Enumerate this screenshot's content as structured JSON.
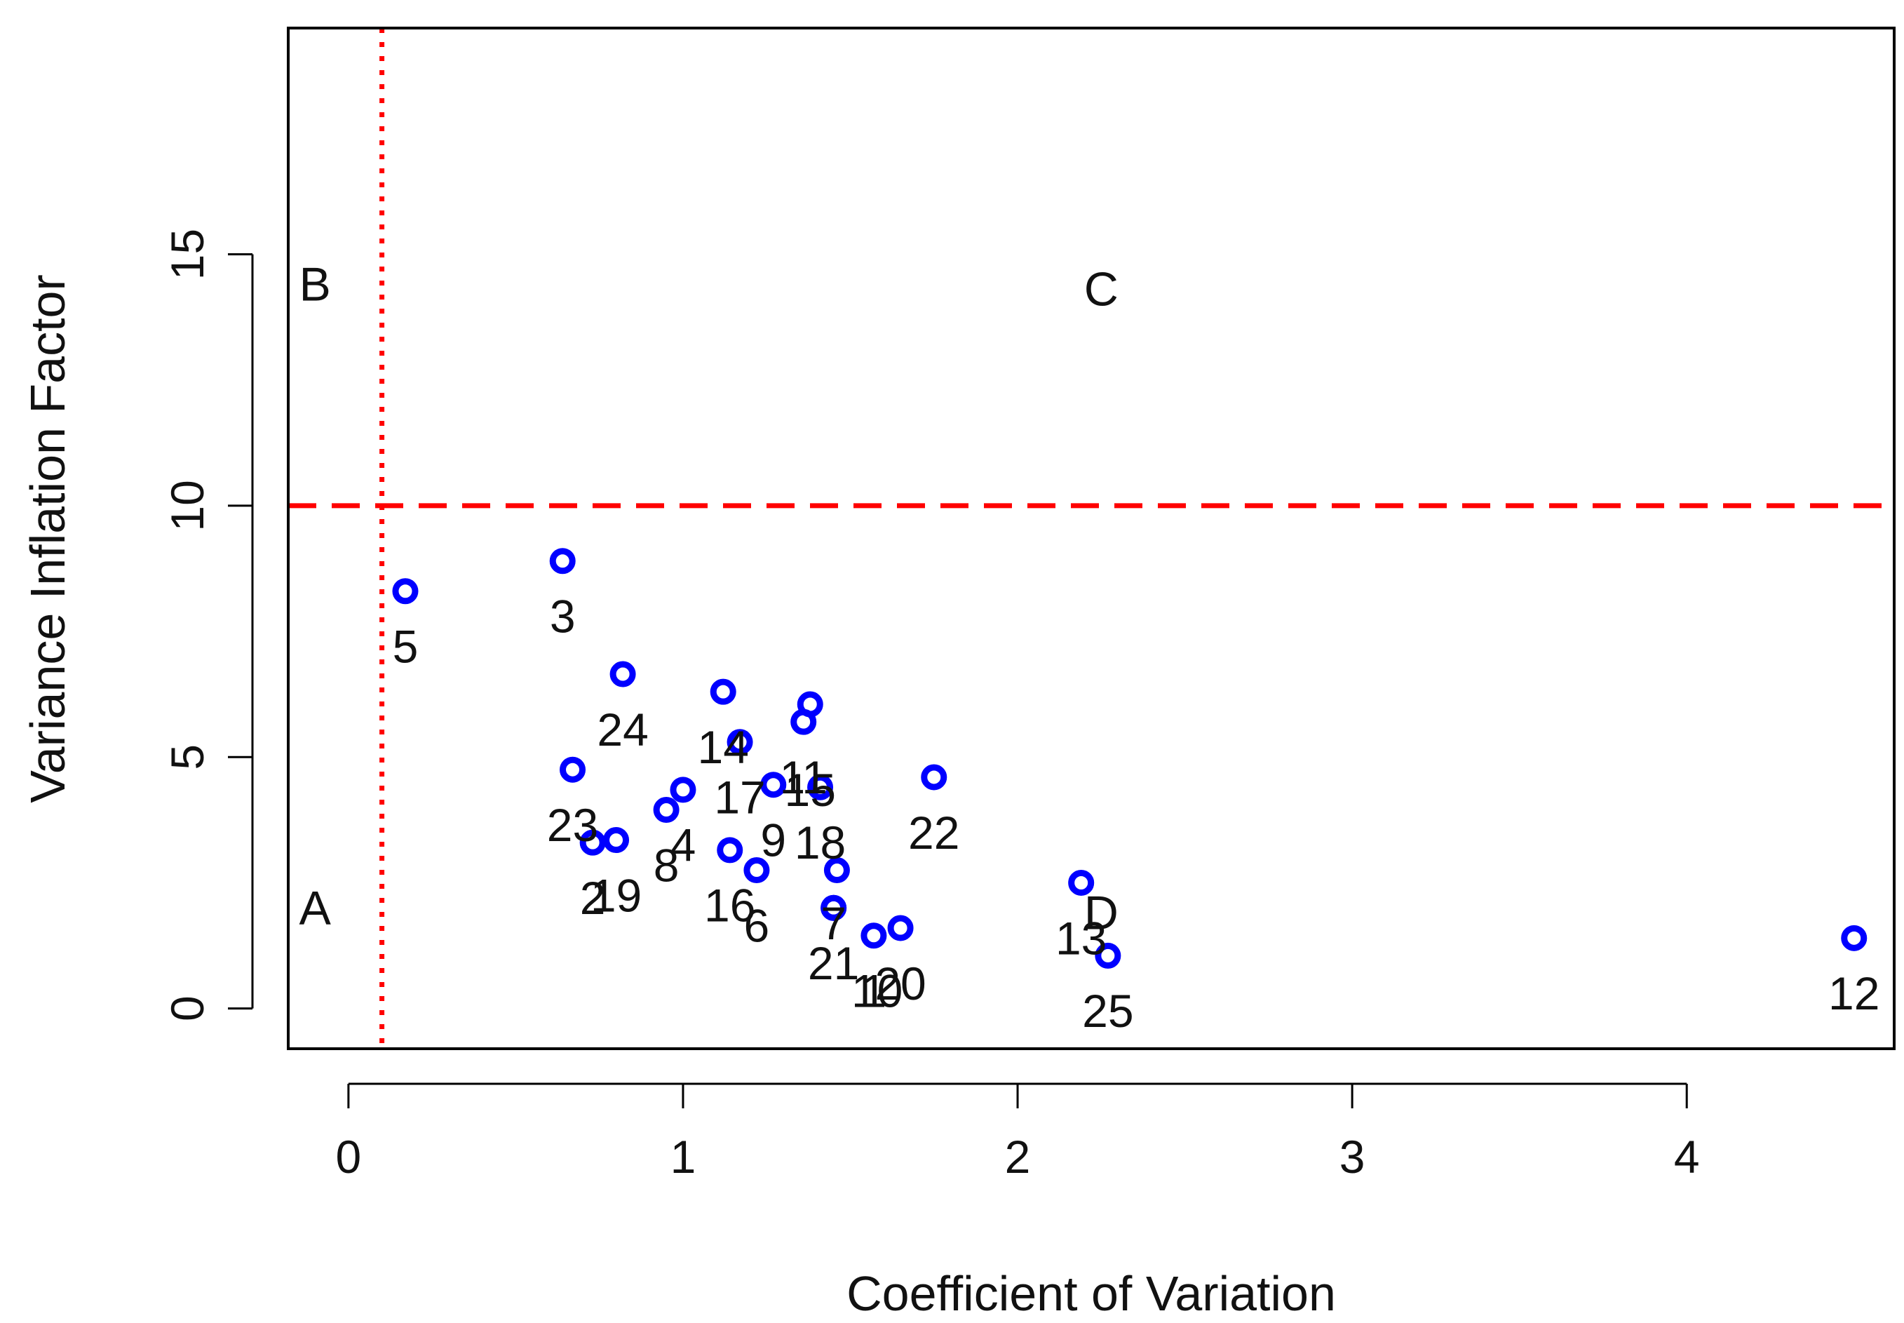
{
  "chart_data": {
    "type": "scatter",
    "title": "",
    "xlabel": "Coefficient of Variation",
    "ylabel": "Variance Inflation Factor",
    "xlim": [
      -0.18,
      4.62
    ],
    "ylim": [
      -0.8,
      19.5
    ],
    "xticks": [
      0,
      1,
      2,
      3,
      4
    ],
    "yticks": [
      0,
      5,
      10,
      15
    ],
    "grid": false,
    "marker_color": "#0000ff",
    "reference_color": "#ff0000",
    "reference_lines": [
      {
        "orientation": "vertical",
        "value": 0.1,
        "style": "dotted"
      },
      {
        "orientation": "horizontal",
        "value": 10,
        "style": "dashed"
      }
    ],
    "region_labels": [
      {
        "text": "A",
        "x": -0.1,
        "y": 2.0
      },
      {
        "text": "B",
        "x": -0.1,
        "y": 14.4
      },
      {
        "text": "C",
        "x": 2.25,
        "y": 14.3
      },
      {
        "text": "D",
        "x": 2.25,
        "y": 1.9
      }
    ],
    "points": [
      {
        "label": "1",
        "x": 1.57,
        "y": 1.45,
        "lx": 1.57,
        "ly": 0.35
      },
      {
        "label": "2",
        "x": 0.73,
        "y": 3.3,
        "lx": 0.73,
        "ly": 2.2
      },
      {
        "label": "3",
        "x": 0.64,
        "y": 8.9,
        "lx": 0.64,
        "ly": 7.8
      },
      {
        "label": "4",
        "x": 1.0,
        "y": 4.35,
        "lx": 1.0,
        "ly": 3.25
      },
      {
        "label": "5",
        "x": 0.17,
        "y": 8.3,
        "lx": 0.17,
        "ly": 7.2
      },
      {
        "label": "6",
        "x": 1.22,
        "y": 2.75,
        "lx": 1.22,
        "ly": 1.65
      },
      {
        "label": "7",
        "x": 1.45,
        "y": 2.0,
        "lx": 1.45,
        "ly": 1.7
      },
      {
        "label": "8",
        "x": 0.95,
        "y": 3.95,
        "lx": 0.95,
        "ly": 2.85
      },
      {
        "label": "9",
        "x": 1.27,
        "y": 4.45,
        "lx": 1.27,
        "ly": 3.35
      },
      {
        "label": "10",
        "x": 1.46,
        "y": 2.75,
        "lx": 1.58,
        "ly": 0.35
      },
      {
        "label": "11",
        "x": 1.36,
        "y": 5.7,
        "lx": 1.36,
        "ly": 4.6
      },
      {
        "label": "12",
        "x": 4.5,
        "y": 1.4,
        "lx": 4.5,
        "ly": 0.3
      },
      {
        "label": "13",
        "x": 2.19,
        "y": 2.5,
        "lx": 2.19,
        "ly": 1.4
      },
      {
        "label": "14",
        "x": 1.12,
        "y": 6.3,
        "lx": 1.12,
        "ly": 5.2
      },
      {
        "label": "15",
        "x": 1.38,
        "y": 6.05,
        "lx": 1.38,
        "ly": 4.35
      },
      {
        "label": "16",
        "x": 1.14,
        "y": 3.15,
        "lx": 1.14,
        "ly": 2.05
      },
      {
        "label": "17",
        "x": 1.17,
        "y": 5.3,
        "lx": 1.17,
        "ly": 4.2
      },
      {
        "label": "18",
        "x": 1.41,
        "y": 4.4,
        "lx": 1.41,
        "ly": 3.3
      },
      {
        "label": "19",
        "x": 0.8,
        "y": 3.35,
        "lx": 0.8,
        "ly": 2.25
      },
      {
        "label": "20",
        "x": 1.65,
        "y": 1.6,
        "lx": 1.65,
        "ly": 0.5
      },
      {
        "label": "21",
        "x": 1.45,
        "y": 2.0,
        "lx": 1.45,
        "ly": 0.9
      },
      {
        "label": "22",
        "x": 1.75,
        "y": 4.6,
        "lx": 1.75,
        "ly": 3.5
      },
      {
        "label": "23",
        "x": 0.67,
        "y": 4.75,
        "lx": 0.67,
        "ly": 3.65
      },
      {
        "label": "24",
        "x": 0.82,
        "y": 6.65,
        "lx": 0.82,
        "ly": 5.55
      },
      {
        "label": "25",
        "x": 2.27,
        "y": 1.05,
        "lx": 2.27,
        "ly": -0.05
      }
    ]
  }
}
